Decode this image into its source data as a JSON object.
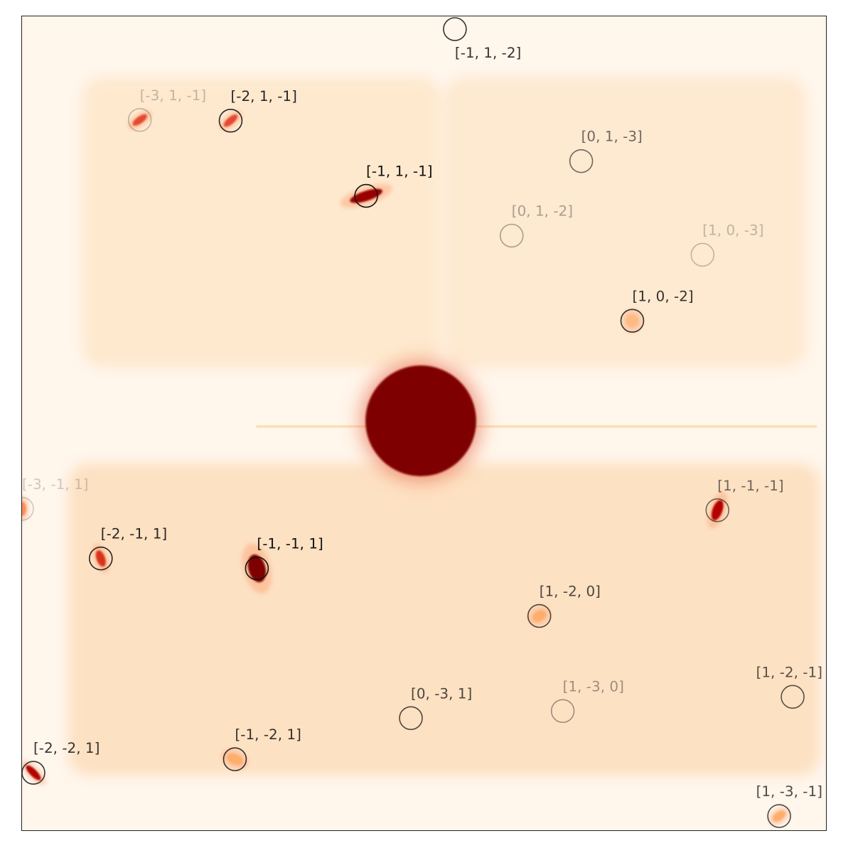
{
  "figure": {
    "colormap": "OrRd",
    "background_color": "#fff6ec",
    "beam_color": "#7f0000"
  },
  "reflections": [
    {
      "label": "[-1, 1, -2]",
      "opacity": 0.85,
      "has_spot": false
    },
    {
      "label": "[-3, 1, -1]",
      "opacity": 0.25,
      "has_spot": true
    },
    {
      "label": "[-2, 1, -1]",
      "opacity": 0.9,
      "has_spot": true
    },
    {
      "label": "[0, 1, -3]",
      "opacity": 0.6,
      "has_spot": false
    },
    {
      "label": "[-1, 1, -1]",
      "opacity": 1.0,
      "has_spot": true
    },
    {
      "label": "[0, 1, -2]",
      "opacity": 0.35,
      "has_spot": false
    },
    {
      "label": "[1, 0, -3]",
      "opacity": 0.25,
      "has_spot": false
    },
    {
      "label": "[1, 0, -2]",
      "opacity": 0.85,
      "has_spot": true
    },
    {
      "label": "[-3, -1, 1]",
      "opacity": 0.2,
      "has_spot": true
    },
    {
      "label": "[1, -1, -1]",
      "opacity": 0.6,
      "has_spot": true
    },
    {
      "label": "[-2, -1, 1]",
      "opacity": 0.9,
      "has_spot": true
    },
    {
      "label": "[-1, -1, 1]",
      "opacity": 1.0,
      "has_spot": true
    },
    {
      "label": "[1, -2, 0]",
      "opacity": 0.75,
      "has_spot": true
    },
    {
      "label": "[1, -2, -1]",
      "opacity": 0.7,
      "has_spot": false
    },
    {
      "label": "[0, -3, 1]",
      "opacity": 0.75,
      "has_spot": false
    },
    {
      "label": "[1, -3, 0]",
      "opacity": 0.4,
      "has_spot": false
    },
    {
      "label": "[-1, -2, 1]",
      "opacity": 0.85,
      "has_spot": true
    },
    {
      "label": "[-2, -2, 1]",
      "opacity": 0.85,
      "has_spot": true
    },
    {
      "label": "[1, -3, -1]",
      "opacity": 0.75,
      "has_spot": true
    }
  ]
}
